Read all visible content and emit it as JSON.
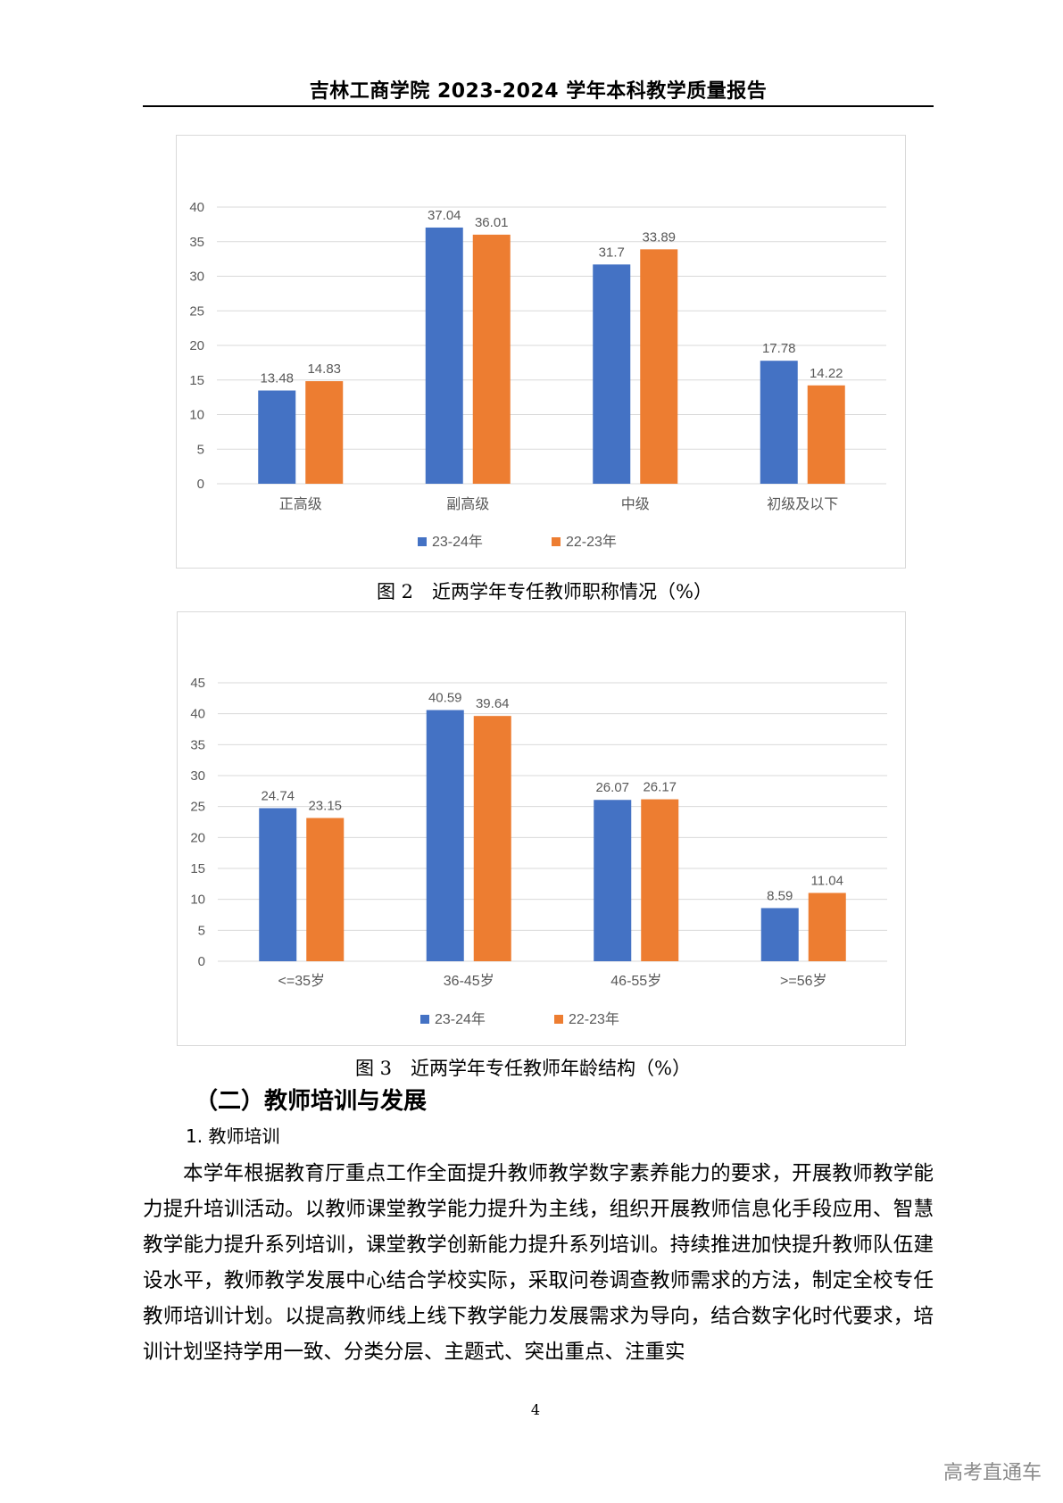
{
  "header": {
    "title": "吉林工商学院 2023-2024 学年本科教学质量报告"
  },
  "figures": [
    {
      "caption": "图 2　近两学年专任教师职称情况（%）",
      "chart_data": {
        "type": "bar",
        "categories": [
          "正高级",
          "副高级",
          "中级",
          "初级及以下"
        ],
        "series": [
          {
            "name": "23-24年",
            "values": [
              13.48,
              37.04,
              31.7,
              17.78
            ]
          },
          {
            "name": "22-23年",
            "values": [
              14.83,
              36.01,
              33.89,
              14.22
            ]
          }
        ],
        "ylim": [
          0,
          40
        ],
        "yticks": [
          0,
          5,
          10,
          15,
          20,
          25,
          30,
          35,
          40
        ],
        "grid": true,
        "legend": "bottom",
        "colors": [
          "#4472C4",
          "#ED7D31"
        ]
      }
    },
    {
      "caption": "图 3　近两学年专任教师年龄结构（%）",
      "chart_data": {
        "type": "bar",
        "categories": [
          "<=35岁",
          "36-45岁",
          "46-55岁",
          ">=56岁"
        ],
        "series": [
          {
            "name": "23-24年",
            "values": [
              24.74,
              40.59,
              26.07,
              8.59
            ]
          },
          {
            "name": "22-23年",
            "values": [
              23.15,
              39.64,
              26.17,
              11.04
            ]
          }
        ],
        "ylim": [
          0,
          45
        ],
        "yticks": [
          0,
          5,
          10,
          15,
          20,
          25,
          30,
          35,
          40,
          45
        ],
        "grid": true,
        "legend": "bottom",
        "colors": [
          "#4472C4",
          "#ED7D31"
        ]
      }
    }
  ],
  "section": {
    "heading": "（二）教师培训与发展",
    "subheading": "1. 教师培训",
    "paragraph": "本学年根据教育厅重点工作全面提升教师教学数字素养能力的要求，开展教师教学能力提升培训活动。以教师课堂教学能力提升为主线，组织开展教师信息化手段应用、智慧教学能力提升系列培训，课堂教学创新能力提升系列培训。持续推进加快提升教师队伍建设水平，教师教学发展中心结合学校实际，采取问卷调查教师需求的方法，制定全校专任教师培训计划。以提高教师线上线下教学能力发展需求为导向，结合数字化时代要求，培训计划坚持学用一致、分类分层、主题式、突出重点、注重实"
  },
  "footer": {
    "page_number": "4"
  },
  "watermark": "高考直通车"
}
